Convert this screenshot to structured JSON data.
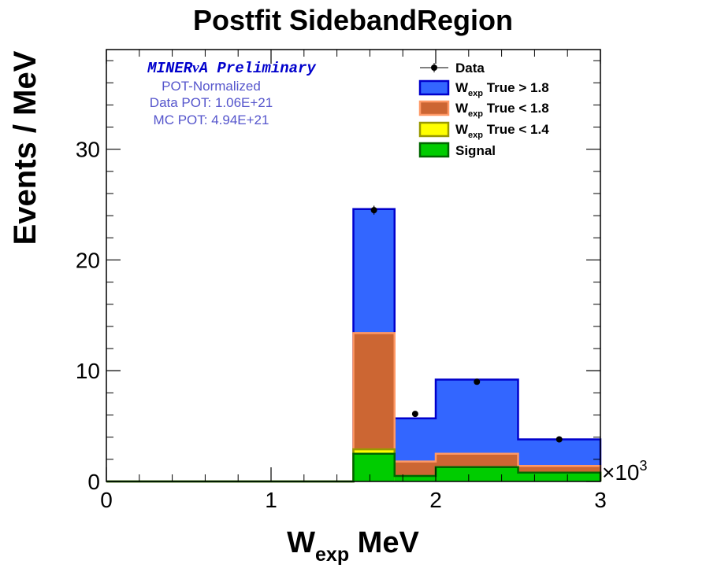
{
  "chart_data": {
    "type": "bar",
    "title": "Postfit SidebandRegion",
    "xlabel": {
      "main": "W",
      "sub": "exp",
      "unit": " MeV"
    },
    "ylabel": "Events / MeV",
    "x_multiplier_label": "×10",
    "x_multiplier_exp": "3",
    "xlim": [
      0,
      3000
    ],
    "ylim": [
      0,
      39
    ],
    "x_ticks": [
      {
        "value": 0,
        "label": "0"
      },
      {
        "value": 1000,
        "label": "1"
      },
      {
        "value": 2000,
        "label": "2"
      },
      {
        "value": 3000,
        "label": "3"
      }
    ],
    "y_ticks": [
      {
        "value": 0,
        "label": "0"
      },
      {
        "value": 10,
        "label": "10"
      },
      {
        "value": 20,
        "label": "20"
      },
      {
        "value": 30,
        "label": "30"
      }
    ],
    "bin_edges": [
      0,
      1500,
      1750,
      2000,
      2500,
      3000
    ],
    "stacked": true,
    "series": [
      {
        "name": "Signal",
        "color": "#00cc00",
        "line_color": "#006600",
        "values": [
          0,
          2.5,
          0.5,
          1.3,
          0.8
        ]
      },
      {
        "name": "W_exp True < 1.4",
        "legend_main": "W",
        "legend_sub": "exp",
        "legend_rest": " True < 1.4",
        "color": "#ffff00",
        "line_color": "#999900",
        "values": [
          0,
          0.4,
          0,
          0,
          0
        ]
      },
      {
        "name": "W_exp True < 1.8",
        "legend_main": "W",
        "legend_sub": "exp",
        "legend_rest": " True < 1.8",
        "color": "#cc6633",
        "line_color": "#ff9966",
        "values": [
          0,
          10.5,
          1.3,
          1.2,
          0.6
        ]
      },
      {
        "name": "W_exp True > 1.8",
        "legend_main": "W",
        "legend_sub": "exp",
        "legend_rest": " True > 1.8",
        "color": "#3366ff",
        "line_color": "#0000cc",
        "values": [
          0,
          11.2,
          3.9,
          6.7,
          2.4
        ]
      }
    ],
    "data_points": {
      "name": "Data",
      "x": [
        1625,
        1875,
        2250,
        2750
      ],
      "y": [
        24.5,
        6.1,
        9.0,
        3.8
      ],
      "err": [
        0.4,
        0.15,
        0.15,
        0.1
      ]
    },
    "legend_placement": "top-right",
    "annotation": {
      "main_a": "MINER",
      "main_nu": "ν",
      "main_b": "A Preliminary",
      "lines": [
        "POT-Normalized",
        "Data POT: 1.06E+21",
        "MC POT: 4.94E+21"
      ],
      "main_color": "#0000cc",
      "sub_color": "#5555cc"
    },
    "grid": false
  }
}
